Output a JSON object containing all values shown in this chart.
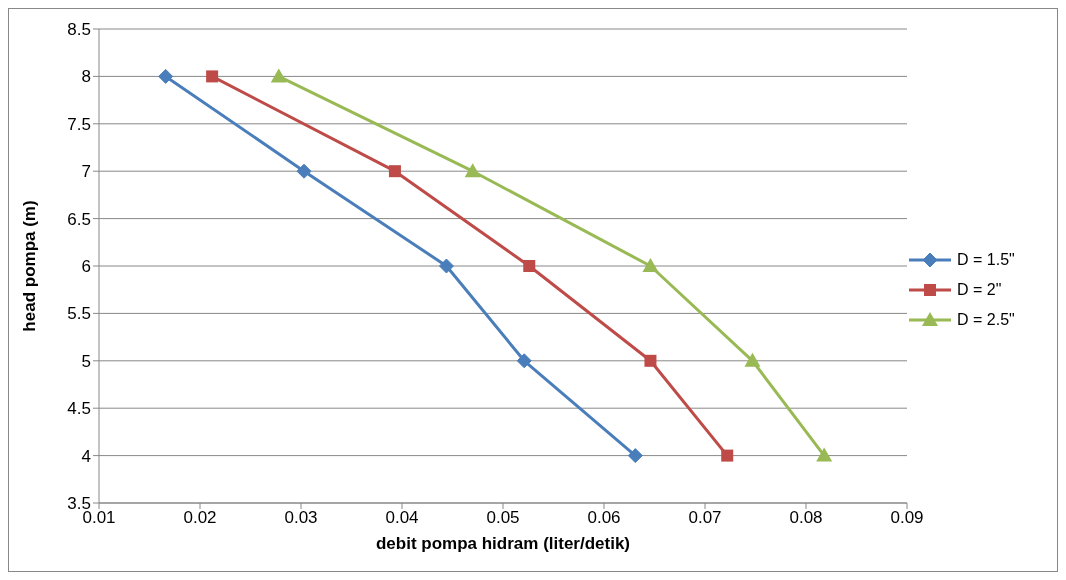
{
  "chart_data": {
    "type": "line",
    "xlabel": "debit pompa hidram (liter/detik)",
    "ylabel": "head pompa (m)",
    "xlim": [
      0.01,
      0.09
    ],
    "xticks": [
      0.01,
      0.02,
      0.03,
      0.04,
      0.05,
      0.06,
      0.07,
      0.08,
      0.09
    ],
    "ylim": [
      3.5,
      8.5
    ],
    "yticks": [
      3.5,
      4,
      4.5,
      5,
      5.5,
      6,
      6.5,
      7,
      7.5,
      8,
      8.5
    ],
    "grid": "y",
    "legend": "right",
    "line_style": "solid",
    "series": [
      {
        "name": "D = 1.5\"",
        "color": "#4a7ebb",
        "marker": "diamond",
        "x": [
          0.0166,
          0.0303,
          0.0444,
          0.0521,
          0.0631
        ],
        "values": [
          8,
          7,
          6,
          5,
          4
        ]
      },
      {
        "name": "D = 2\"",
        "color": "#be4b48",
        "marker": "square",
        "x": [
          0.0212,
          0.0393,
          0.0526,
          0.0646,
          0.0722
        ],
        "values": [
          8,
          7,
          6,
          5,
          4
        ]
      },
      {
        "name": "D = 2.5\"",
        "color": "#98b954",
        "marker": "triangle",
        "x": [
          0.0278,
          0.047,
          0.0646,
          0.0747,
          0.0818
        ],
        "values": [
          8,
          7,
          6,
          5,
          4
        ]
      }
    ]
  }
}
